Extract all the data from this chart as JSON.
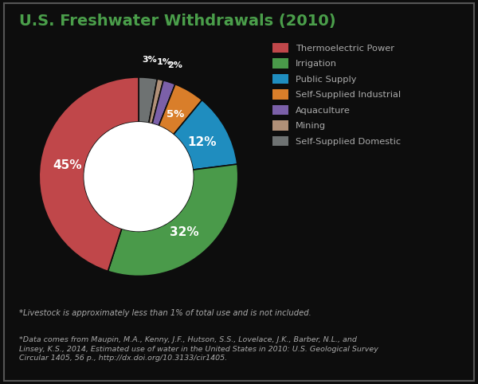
{
  "title": "U.S. Freshwater Withdrawals (2010)",
  "background_color": "#0d0d0d",
  "title_color": "#4a9e4a",
  "labels": [
    "Thermoelectric Power",
    "Irrigation",
    "Public Supply",
    "Self-Supplied Industrial",
    "Aquaculture",
    "Mining",
    "Self-Supplied Domestic"
  ],
  "values": [
    45,
    32,
    12,
    5,
    2,
    1,
    3
  ],
  "colors": [
    "#c0474a",
    "#4a9a4a",
    "#1f8dbf",
    "#d97e2a",
    "#7b60a8",
    "#b09078",
    "#6e7272"
  ],
  "plot_order_labels": [
    "Self-Supplied Domestic",
    "Mining",
    "Aquaculture",
    "Self-Supplied Industrial",
    "Public Supply",
    "Irrigation",
    "Thermoelectric Power"
  ],
  "plot_order_values": [
    3,
    1,
    2,
    5,
    12,
    32,
    45
  ],
  "plot_order_colors": [
    "#6e7272",
    "#b09078",
    "#7b60a8",
    "#d97e2a",
    "#1f8dbf",
    "#4a9a4a",
    "#c0474a"
  ],
  "plot_order_pcts": [
    "3%",
    "1%",
    "2%",
    "5%",
    "12%",
    "32%",
    "45%"
  ],
  "note1": "*Livestock is approximately less than 1% of total use and is not included.",
  "note2": "*Data comes from Maupin, M.A., Kenny, J.F., Hutson, S.S., Lovelace, J.K., Barber, N.L., and\nLinsey, K.S., 2014, Estimated use of water in the United States in 2010: U.S. Geological Survey\nCircular 1405, 56 p., http://dx.doi.org/10.3133/cir1405.",
  "text_color": "#aaaaaa",
  "legend_text_color": "#aaaaaa",
  "border_color": "#555555"
}
